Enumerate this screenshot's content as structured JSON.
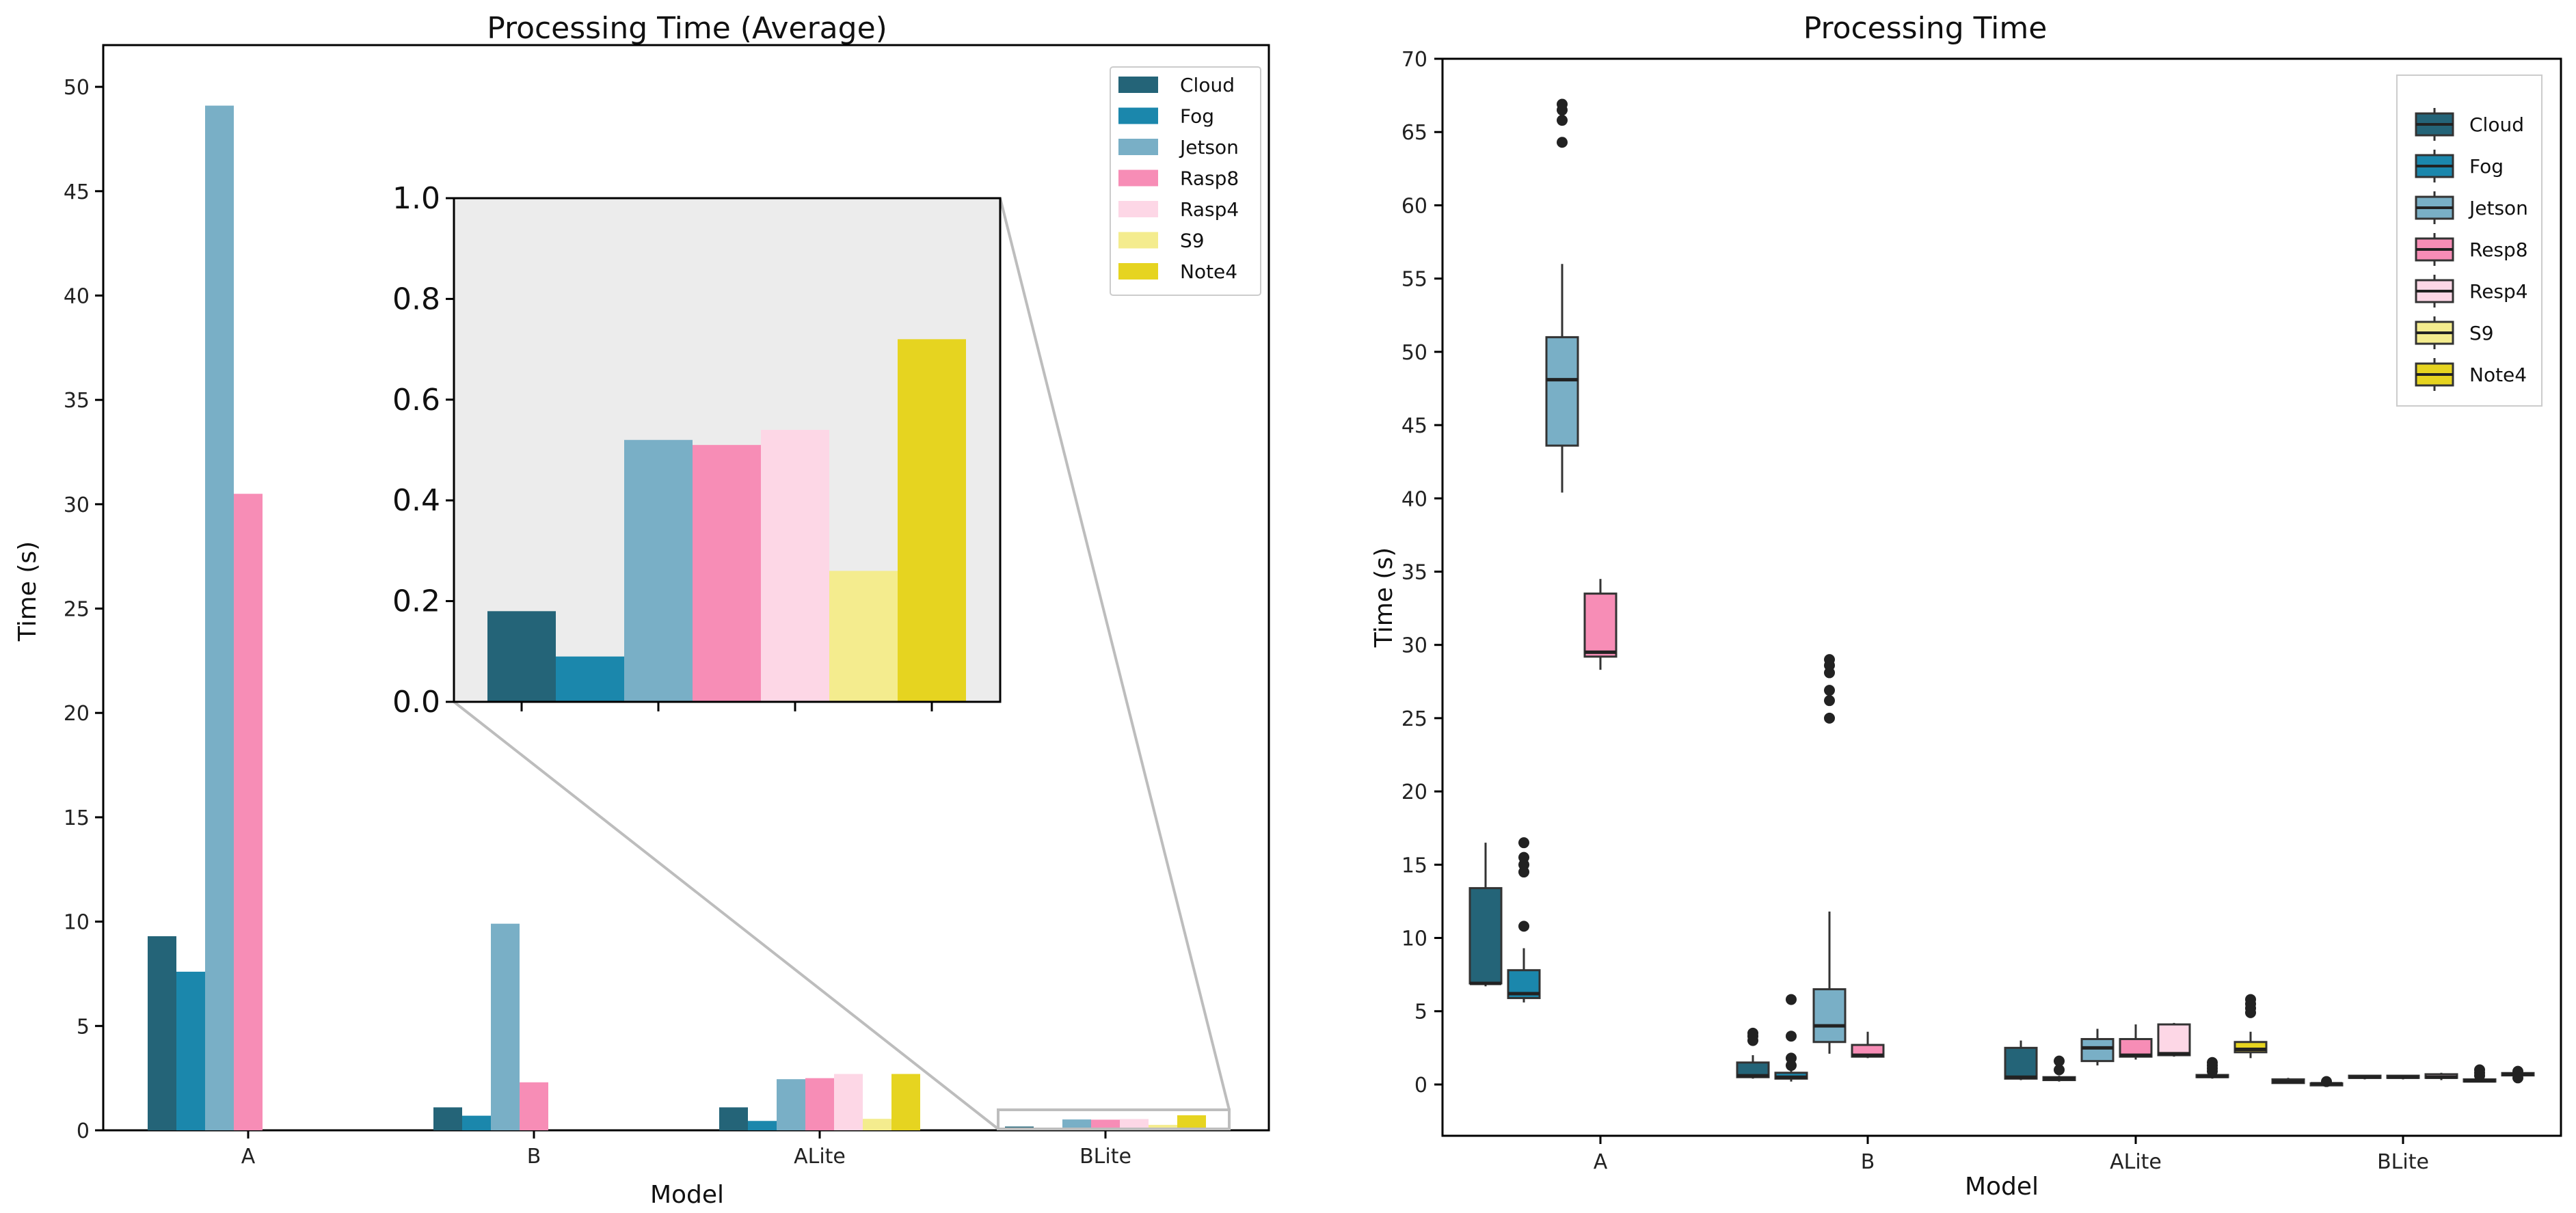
{
  "colors": {
    "Cloud": "#246478",
    "Fog": "#1b87ac",
    "Jetson": "#79afc6",
    "Rasp8": "#f78db6",
    "Rasp4": "#fdd7e6",
    "S9": "#f4ec8e",
    "Note4": "#e6d420",
    "inset_bg": "#ececec"
  },
  "chart_data": [
    {
      "type": "bar",
      "title": "Processing Time (Average)",
      "xlabel": "Model",
      "ylabel": "Time (s)",
      "ylim": [
        0,
        52
      ],
      "yticks": [
        "0",
        "5",
        "10",
        "15",
        "20",
        "25",
        "30",
        "35",
        "40",
        "45",
        "50"
      ],
      "categories": [
        "A",
        "B",
        "ALite",
        "BLite"
      ],
      "legend_position": "top-right",
      "series": [
        {
          "name": "Cloud",
          "values": [
            9.3,
            1.1,
            1.1,
            0.18
          ]
        },
        {
          "name": "Fog",
          "values": [
            7.6,
            0.7,
            0.45,
            0.09
          ]
        },
        {
          "name": "Jetson",
          "values": [
            49.1,
            9.9,
            2.45,
            0.52
          ]
        },
        {
          "name": "Rasp8",
          "values": [
            30.5,
            2.3,
            2.5,
            0.51
          ]
        },
        {
          "name": "Rasp4",
          "values": [
            0,
            0,
            2.7,
            0.54
          ]
        },
        {
          "name": "S9",
          "values": [
            0,
            0,
            0.55,
            0.26
          ]
        },
        {
          "name": "Note4",
          "values": [
            0,
            0,
            2.7,
            0.72
          ]
        }
      ],
      "inset": {
        "category": "BLite",
        "ylim": [
          0,
          1.0
        ],
        "yticks": [
          "0.0",
          "0.2",
          "0.4",
          "0.6",
          "0.8",
          "1.0"
        ],
        "values": [
          0.18,
          0.09,
          0.52,
          0.51,
          0.54,
          0.26,
          0.72
        ]
      }
    },
    {
      "type": "box",
      "title": "Processing Time",
      "xlabel": "Model",
      "ylabel": "Time (s)",
      "ylim": [
        -3.5,
        70
      ],
      "yticks": [
        "0",
        "5",
        "10",
        "15",
        "20",
        "25",
        "30",
        "35",
        "40",
        "45",
        "50",
        "55",
        "60",
        "65",
        "70"
      ],
      "categories": [
        "A",
        "B",
        "ALite",
        "BLite"
      ],
      "legend_position": "top-right",
      "legend": [
        "Cloud",
        "Fog",
        "Jetson",
        "Resp8",
        "Resp4",
        "S9",
        "Note4"
      ],
      "series": [
        {
          "name": "Cloud",
          "boxes": [
            {
              "category": "A",
              "low": 6.7,
              "q1": 6.9,
              "median": 6.9,
              "q3": 13.4,
              "high": 16.5,
              "outliers": []
            },
            {
              "category": "B",
              "low": 0.4,
              "q1": 0.5,
              "median": 0.6,
              "q3": 1.5,
              "high": 2.0,
              "outliers": [
                3.0,
                3.3,
                3.5
              ]
            },
            {
              "category": "ALite",
              "low": 0.3,
              "q1": 0.4,
              "median": 0.5,
              "q3": 2.5,
              "high": 3.0,
              "outliers": []
            },
            {
              "category": "BLite",
              "low": 0.05,
              "q1": 0.1,
              "median": 0.2,
              "q3": 0.35,
              "high": 0.45,
              "outliers": []
            }
          ]
        },
        {
          "name": "Fog",
          "boxes": [
            {
              "category": "A",
              "low": 5.6,
              "q1": 5.9,
              "median": 6.2,
              "q3": 7.8,
              "high": 9.3,
              "outliers": [
                10.8,
                14.5,
                15.0,
                15.5,
                16.5
              ]
            },
            {
              "category": "B",
              "low": 0.2,
              "q1": 0.4,
              "median": 0.5,
              "q3": 0.8,
              "high": 1.0,
              "outliers": [
                1.3,
                1.8,
                3.3,
                5.8
              ]
            },
            {
              "category": "ALite",
              "low": 0.2,
              "q1": 0.3,
              "median": 0.4,
              "q3": 0.5,
              "high": 0.6,
              "outliers": [
                1.0,
                1.6
              ]
            },
            {
              "category": "BLite",
              "low": 0.0,
              "q1": 0.02,
              "median": 0.05,
              "q3": 0.08,
              "high": 0.1,
              "outliers": [
                0.2
              ]
            }
          ]
        },
        {
          "name": "Jetson",
          "boxes": [
            {
              "category": "A",
              "low": 40.4,
              "q1": 43.6,
              "median": 48.1,
              "q3": 51.0,
              "high": 56.0,
              "outliers": [
                64.3,
                65.8,
                66.5,
                66.9
              ]
            },
            {
              "category": "B",
              "low": 2.1,
              "q1": 2.9,
              "median": 4.0,
              "q3": 6.5,
              "high": 11.8,
              "outliers": [
                25.0,
                26.2,
                26.9,
                28.1,
                28.6,
                29.0
              ]
            },
            {
              "category": "ALite",
              "low": 1.3,
              "q1": 1.6,
              "median": 2.5,
              "q3": 3.1,
              "high": 3.8,
              "outliers": []
            },
            {
              "category": "BLite",
              "low": 0.35,
              "q1": 0.45,
              "median": 0.5,
              "q3": 0.6,
              "high": 0.65,
              "outliers": []
            }
          ]
        },
        {
          "name": "Resp8",
          "boxes": [
            {
              "category": "A",
              "low": 28.3,
              "q1": 29.2,
              "median": 29.5,
              "q3": 33.5,
              "high": 34.5,
              "outliers": []
            },
            {
              "category": "B",
              "low": 1.8,
              "q1": 1.9,
              "median": 2.0,
              "q3": 2.7,
              "high": 3.6,
              "outliers": []
            },
            {
              "category": "ALite",
              "low": 1.7,
              "q1": 1.9,
              "median": 2.0,
              "q3": 3.1,
              "high": 4.1,
              "outliers": []
            },
            {
              "category": "BLite",
              "low": 0.35,
              "q1": 0.45,
              "median": 0.5,
              "q3": 0.6,
              "high": 0.65,
              "outliers": []
            }
          ]
        },
        {
          "name": "Resp4",
          "boxes": [
            {
              "category": "ALite",
              "low": 1.9,
              "q1": 2.0,
              "median": 2.1,
              "q3": 4.1,
              "high": 4.2,
              "outliers": []
            },
            {
              "category": "BLite",
              "low": 0.3,
              "q1": 0.45,
              "median": 0.5,
              "q3": 0.7,
              "high": 0.8,
              "outliers": []
            }
          ]
        },
        {
          "name": "S9",
          "boxes": [
            {
              "category": "ALite",
              "low": 0.4,
              "q1": 0.5,
              "median": 0.55,
              "q3": 0.65,
              "high": 0.7,
              "outliers": [
                0.9,
                1.1,
                1.3,
                1.5
              ]
            },
            {
              "category": "BLite",
              "low": 0.15,
              "q1": 0.2,
              "median": 0.25,
              "q3": 0.35,
              "high": 0.4,
              "outliers": [
                0.6,
                0.8,
                1.0
              ]
            }
          ]
        },
        {
          "name": "Note4",
          "boxes": [
            {
              "category": "ALite",
              "low": 1.8,
              "q1": 2.2,
              "median": 2.4,
              "q3": 2.9,
              "high": 3.6,
              "outliers": [
                4.9,
                5.2,
                5.5,
                5.8
              ]
            },
            {
              "category": "BLite",
              "low": 0.55,
              "q1": 0.62,
              "median": 0.7,
              "q3": 0.78,
              "high": 0.85,
              "outliers": [
                0.45,
                0.9
              ]
            }
          ]
        }
      ]
    }
  ]
}
